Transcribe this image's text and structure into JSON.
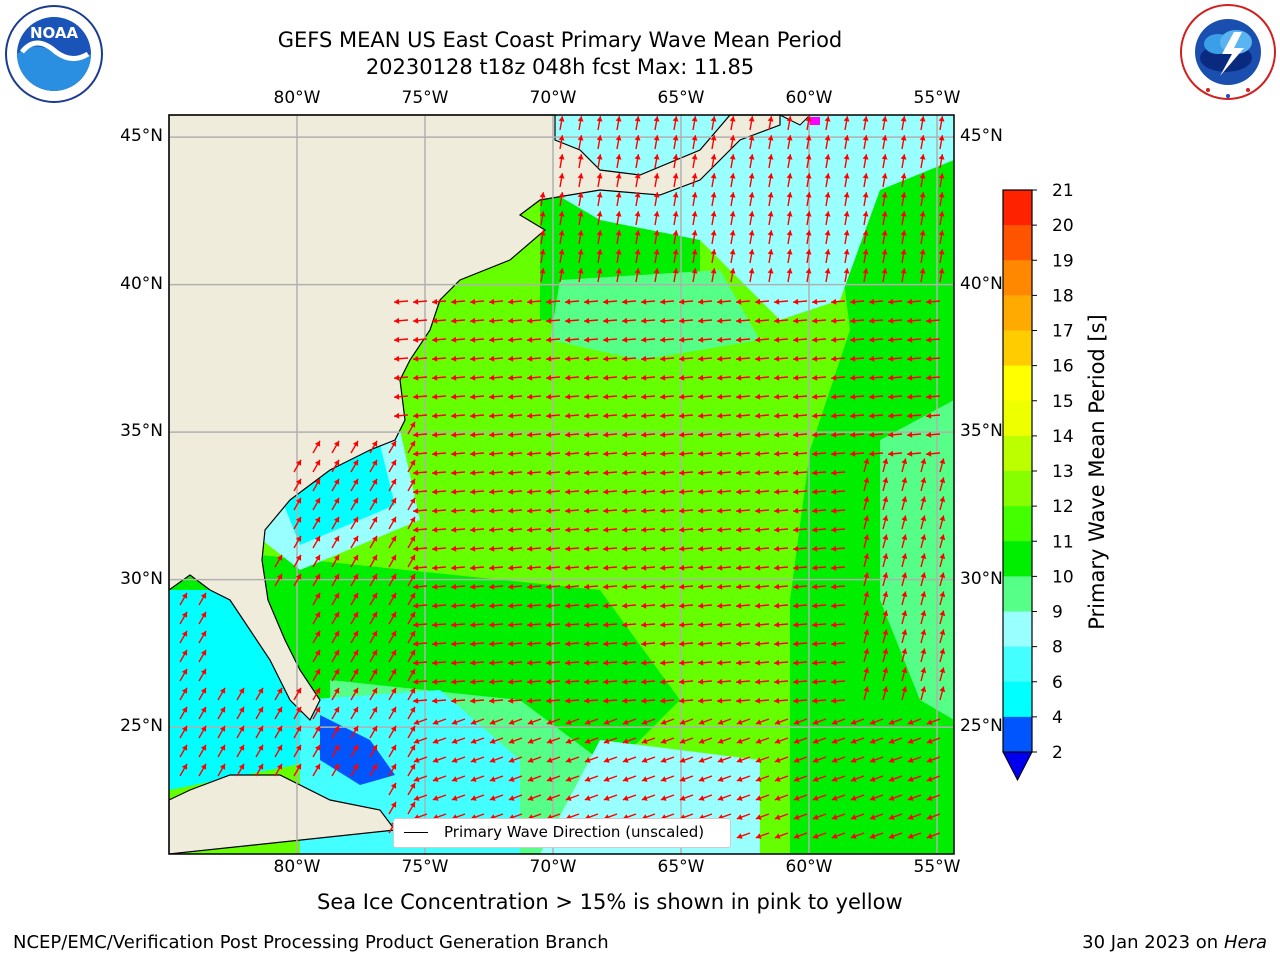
{
  "header": {
    "title_line1": "GEFS MEAN US East Coast Primary Wave Mean Period",
    "title_line2": "20230128 t18z 048h fcst   Max: 11.85"
  },
  "logos": {
    "noaa": "NOAA",
    "noaa_ring": "NATIONAL OCEANIC AND ATMOSPHERIC ADMINISTRATION · U.S. DEPARTMENT OF COMMERCE",
    "nws_ring": "NATIONAL WEATHER SERVICE"
  },
  "map": {
    "lon_labels": [
      "80°W",
      "75°W",
      "70°W",
      "65°W",
      "60°W",
      "55°W"
    ],
    "lat_labels": [
      "45°N",
      "40°N",
      "35°N",
      "30°N",
      "25°N"
    ],
    "legend_text": "Primary Wave Direction (unscaled)",
    "colors": {
      "land": "#efecdc",
      "arrow": "#ff0000",
      "grid": "#b0b0b0"
    }
  },
  "colorbar": {
    "label": "Primary Wave Mean Period [s]",
    "ticks": [
      "2",
      "4",
      "6",
      "8",
      "9",
      "10",
      "11",
      "12",
      "13",
      "14",
      "15",
      "16",
      "17",
      "18",
      "19",
      "20",
      "21"
    ],
    "colors": [
      "#0055ff",
      "#00ffff",
      "#44ffff",
      "#99ffff",
      "#55ff88",
      "#00ee00",
      "#44ff00",
      "#88ff00",
      "#bbff00",
      "#eeff00",
      "#ffff00",
      "#ffcc00",
      "#ffaa00",
      "#ff8800",
      "#ff5500",
      "#ff2200"
    ],
    "extend_color": "#0000ee"
  },
  "notes": {
    "sea_ice": "Sea Ice Concentration > 15% is shown in pink to yellow"
  },
  "footer": {
    "left": "NCEP/EMC/Verification Post Processing Product Generation Branch",
    "date": "30 Jan 2023 on",
    "machine": "Hera"
  }
}
